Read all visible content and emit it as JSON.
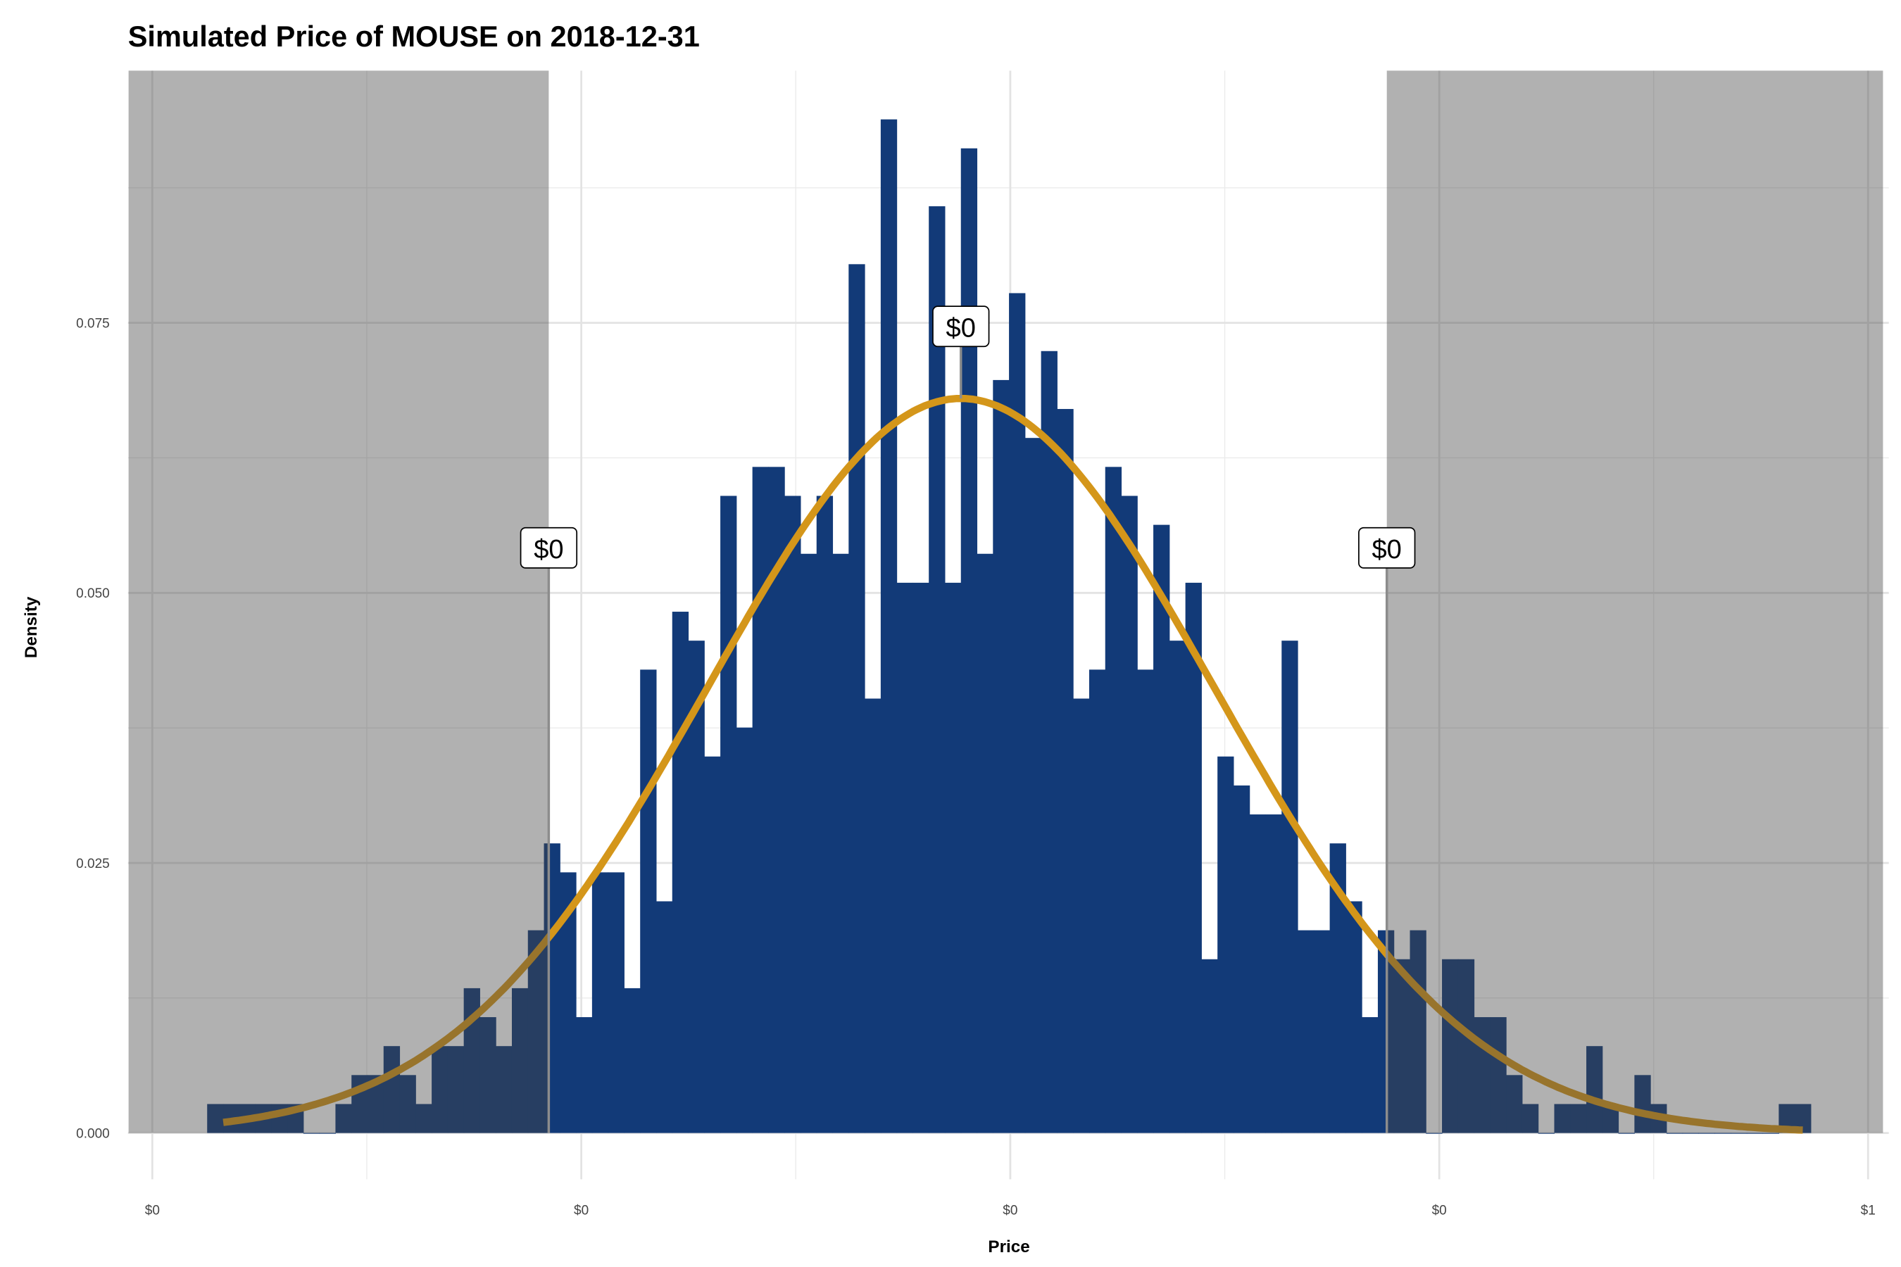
{
  "chart_data": {
    "type": "bar",
    "title": "Simulated Price of MOUSE on 2018-12-31",
    "xlabel": "Price",
    "ylabel": "Density",
    "x_units": "histogram bin index (price labels are all rounded to whole dollars)",
    "xlim": [
      -4.9,
      104.5
    ],
    "ylim": [
      0,
      0.0983
    ],
    "grid": true,
    "bin_density_unit": 0.002681,
    "bin_counts": [
      1,
      1,
      1,
      1,
      1,
      1,
      0,
      0,
      1,
      2,
      2,
      3,
      2,
      1,
      3,
      3,
      5,
      4,
      3,
      5,
      7,
      10,
      9,
      4,
      9,
      9,
      5,
      16,
      8,
      18,
      17,
      13,
      22,
      14,
      23,
      23,
      22,
      20,
      22,
      20,
      30,
      15,
      35,
      19,
      19,
      32,
      19,
      34,
      20,
      26,
      29,
      24,
      27,
      25,
      15,
      16,
      23,
      22,
      16,
      21,
      17,
      19,
      6,
      13,
      12,
      11,
      11,
      17,
      7,
      7,
      10,
      8,
      4,
      7,
      6,
      7,
      0,
      6,
      6,
      4,
      4,
      2,
      1,
      0,
      1,
      1,
      3,
      1,
      0,
      2,
      1,
      0,
      0,
      0,
      0,
      0,
      0,
      0,
      1,
      1
    ],
    "x_ticks": [
      -3.42,
      23.33,
      50.08,
      76.83,
      103.57
    ],
    "x_tick_labels": [
      "$0",
      "$0",
      "$0",
      "$0",
      "$1"
    ],
    "y_ticks": [
      0,
      0.025,
      0.05,
      0.075
    ],
    "y_tick_labels": [
      "0.000",
      "0.025",
      "0.050",
      "0.075"
    ],
    "density_curve": {
      "distribution": "normal",
      "mean": 47.0,
      "sd": 15.8,
      "peak": 0.068,
      "x_range": [
        1.0,
        99.5
      ]
    },
    "shaded_regions": [
      [
        -4.9,
        21.3
      ],
      [
        73.56,
        104.5
      ]
    ],
    "annotations": [
      {
        "label": "$0",
        "x": 21.3,
        "y": 0.054,
        "line_to": 0
      },
      {
        "label": "$0",
        "x": 47.0,
        "y": 0.0745,
        "line_to": 0.068
      },
      {
        "label": "$0",
        "x": 73.56,
        "y": 0.054,
        "line_to": 0
      }
    ],
    "colors": {
      "bar": "#123a78",
      "curve": "#d4961a",
      "shade": "#464646",
      "annotation_line": "#8c8c8c"
    }
  }
}
